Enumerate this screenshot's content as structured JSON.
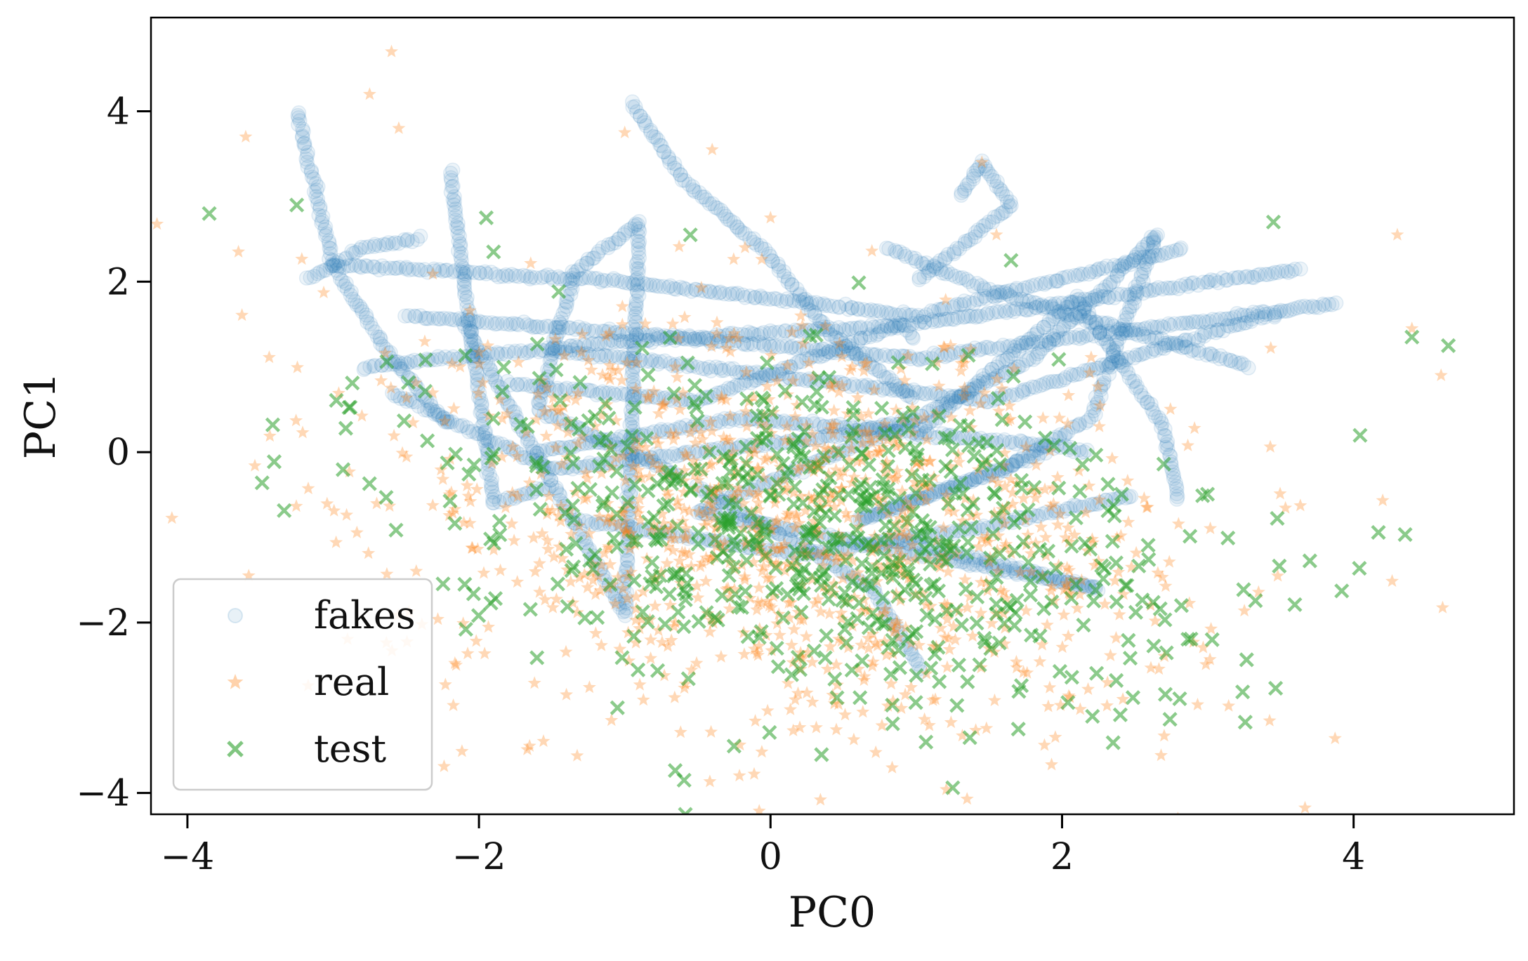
{
  "chart_data": {
    "type": "scatter",
    "title": "",
    "xlabel": "PC0",
    "ylabel": "PC1",
    "xlim": [
      -4.25,
      5.1
    ],
    "ylim": [
      -4.25,
      5.1
    ],
    "xticks": [
      -4,
      -2,
      0,
      2,
      4
    ],
    "yticks": [
      -4,
      -2,
      0,
      2,
      4
    ],
    "xtick_labels": [
      "−4",
      "−2",
      "0",
      "2",
      "4"
    ],
    "ytick_labels": [
      "−4",
      "−2",
      "0",
      "2",
      "4"
    ],
    "grid": false,
    "legend_position": "lower-left",
    "series": [
      {
        "name": "fakes",
        "marker": "circle",
        "color": "#1f77b4",
        "alpha": 0.08,
        "trajectories": [
          [
            [
              -2.2,
              3.3
            ],
            [
              -1.9,
              -0.6
            ],
            [
              -1.5,
              -0.4
            ]
          ],
          [
            [
              -2.1,
              1.5
            ],
            [
              -1.0,
              -1.9
            ],
            [
              -0.9,
              2.7
            ],
            [
              -1.35,
              2.1
            ],
            [
              -1.6,
              0.5
            ],
            [
              -0.6,
              -0.3
            ]
          ],
          [
            [
              -2.6,
              0.7
            ],
            [
              -1.5,
              -0.2
            ],
            [
              0.5,
              0.2
            ],
            [
              1.0,
              0.4
            ]
          ],
          [
            [
              2.65,
              2.55
            ],
            [
              2.2,
              0.4
            ],
            [
              1.6,
              -0.2
            ],
            [
              0.6,
              -0.8
            ],
            [
              1.9,
              0.0
            ]
          ],
          [
            [
              2.65,
              2.55
            ],
            [
              1.8,
              1.1
            ],
            [
              0.9,
              0.3
            ],
            [
              -0.5,
              -0.7
            ],
            [
              2.25,
              -1.6
            ],
            [
              0.8,
              -1.0
            ]
          ],
          [
            [
              -0.95,
              4.1
            ],
            [
              -0.6,
              3.2
            ],
            [
              0.0,
              2.3
            ],
            [
              0.4,
              1.4
            ],
            [
              1.0,
              0.6
            ]
          ],
          [
            [
              -3.25,
              4.0
            ],
            [
              -3.0,
              2.2
            ],
            [
              -2.6,
              1.1
            ],
            [
              -2.2,
              0.3
            ]
          ],
          [
            [
              -3.0,
              2.2
            ],
            [
              -1.0,
              2.0
            ],
            [
              1.0,
              1.6
            ],
            [
              2.85,
              2.4
            ]
          ],
          [
            [
              -2.8,
              1.0
            ],
            [
              -1.0,
              1.3
            ],
            [
              1.0,
              1.5
            ],
            [
              3.65,
              2.15
            ]
          ],
          [
            [
              -2.5,
              1.6
            ],
            [
              -1.0,
              1.4
            ],
            [
              1.0,
              1.1
            ],
            [
              3.9,
              1.75
            ]
          ],
          [
            [
              -1.5,
              1.2
            ],
            [
              0.0,
              0.9
            ],
            [
              1.5,
              0.6
            ],
            [
              3.5,
              1.65
            ]
          ],
          [
            [
              -1.8,
              0.8
            ],
            [
              -0.5,
              0.6
            ],
            [
              0.9,
              1.5
            ],
            [
              1.0,
              1.3
            ]
          ],
          [
            [
              -0.5,
              -0.4
            ],
            [
              0.7,
              -1.6
            ],
            [
              1.05,
              -2.6
            ]
          ],
          [
            [
              1.0,
              0.2
            ],
            [
              2.1,
              1.8
            ],
            [
              2.7,
              0.3
            ],
            [
              2.8,
              -0.6
            ]
          ],
          [
            [
              1.3,
              3.0
            ],
            [
              1.45,
              3.4
            ],
            [
              1.65,
              2.9
            ],
            [
              1.0,
              2.0
            ]
          ],
          [
            [
              -1.6,
              0.0
            ],
            [
              -0.2,
              0.4
            ],
            [
              1.8,
              0.1
            ],
            [
              2.2,
              0.0
            ]
          ],
          [
            [
              -2.4,
              2.5
            ],
            [
              -2.8,
              2.4
            ],
            [
              -3.2,
              2.0
            ]
          ],
          [
            [
              0.8,
              2.4
            ],
            [
              1.5,
              1.9
            ],
            [
              2.5,
              1.4
            ],
            [
              3.3,
              1.0
            ]
          ],
          [
            [
              -1.3,
              -0.8
            ],
            [
              0.2,
              -1.2
            ],
            [
              1.4,
              -0.9
            ],
            [
              2.5,
              -0.5
            ]
          ]
        ]
      },
      {
        "name": "real",
        "marker": "star",
        "color": "#ff7f0e",
        "alpha": 0.3,
        "center": [
          0.15,
          -0.9
        ],
        "spread": [
          1.35,
          1.15
        ],
        "count": 1150,
        "outliers": [
          [
            -2.6,
            4.7
          ],
          [
            -2.55,
            3.8
          ],
          [
            -2.75,
            4.2
          ],
          [
            -3.6,
            3.7
          ],
          [
            -3.65,
            2.35
          ],
          [
            -1.0,
            3.75
          ],
          [
            1.45,
            3.4
          ],
          [
            4.3,
            2.55
          ],
          [
            4.4,
            1.45
          ],
          [
            4.6,
            0.9
          ],
          [
            -0.4,
            3.55
          ],
          [
            0.0,
            2.75
          ],
          [
            1.55,
            2.55
          ]
        ]
      },
      {
        "name": "test",
        "marker": "x",
        "color": "#2ca02c",
        "alpha": 0.55,
        "center": [
          0.35,
          -0.9
        ],
        "spread": [
          1.35,
          1.0
        ],
        "count": 620,
        "outliers": [
          [
            -3.85,
            2.8
          ],
          [
            -3.25,
            2.9
          ],
          [
            -1.95,
            2.75
          ],
          [
            -0.55,
            2.55
          ],
          [
            3.45,
            2.7
          ],
          [
            4.65,
            1.25
          ],
          [
            4.4,
            1.35
          ],
          [
            1.65,
            2.25
          ],
          [
            -1.9,
            2.35
          ],
          [
            0.35,
            -3.55
          ],
          [
            -0.25,
            -3.45
          ],
          [
            1.7,
            -3.25
          ],
          [
            -1.05,
            -3.0
          ]
        ]
      }
    ]
  }
}
